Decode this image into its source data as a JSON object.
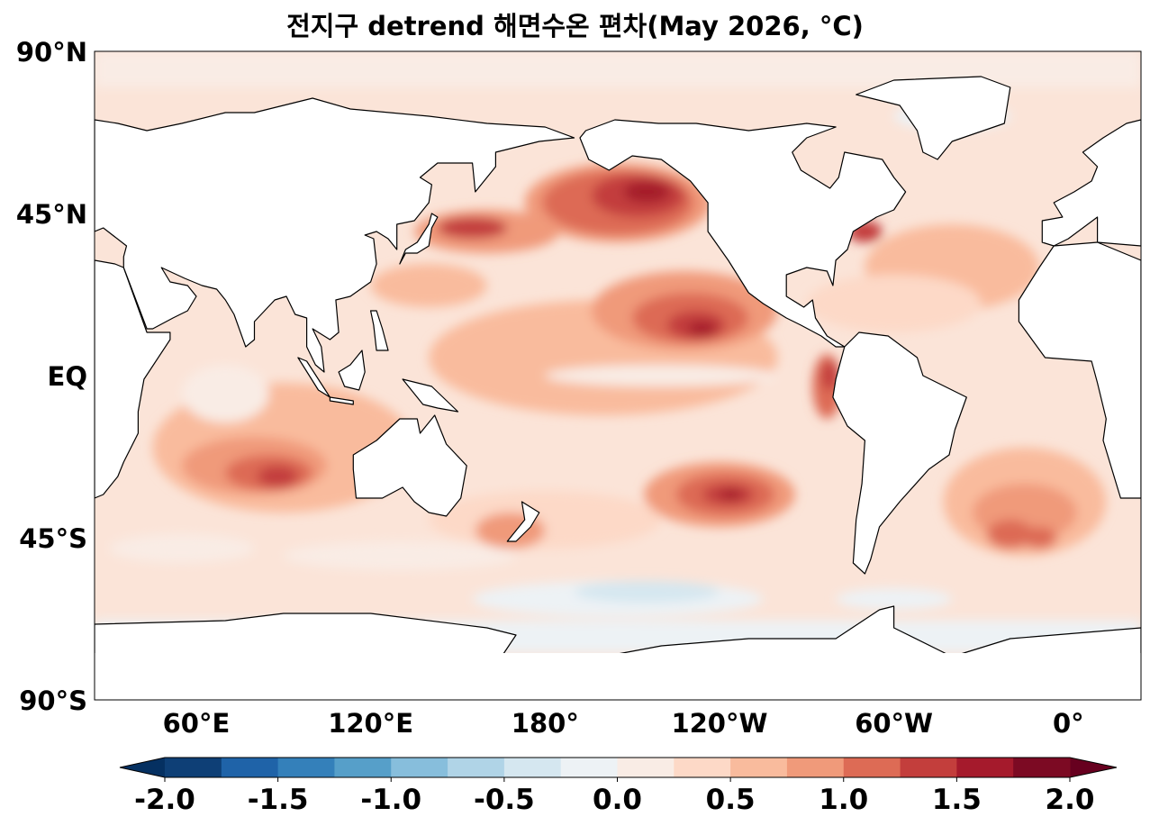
{
  "title": "전지구 detrend 해면수온 편차(May 2026, °C)",
  "map": {
    "projection": "equirectangular",
    "lon_range": [
      25,
      385
    ],
    "lat_range": [
      -90,
      90
    ],
    "variable": "detrended sea surface temperature anomaly",
    "lat_ticks": [
      {
        "value": 90,
        "label": "90°N"
      },
      {
        "value": 45,
        "label": "45°N"
      },
      {
        "value": 0,
        "label": "EQ"
      },
      {
        "value": -45,
        "label": "45°S"
      },
      {
        "value": -90,
        "label": "90°S"
      }
    ],
    "lon_ticks": [
      {
        "value": 60,
        "label": "60°E"
      },
      {
        "value": 120,
        "label": "120°E"
      },
      {
        "value": 180,
        "label": "180°"
      },
      {
        "value": 240,
        "label": "120°W"
      },
      {
        "value": 300,
        "label": "60°W"
      },
      {
        "value": 360,
        "label": "0°"
      }
    ],
    "land_color": "#ffffff",
    "coastline_color": "#000000"
  },
  "colorbar": {
    "min": -2.0,
    "max": 2.0,
    "step": 0.25,
    "extend": "both",
    "tick_labels": [
      "-2.0",
      "-1.5",
      "-1.0",
      "-0.5",
      "0.0",
      "0.5",
      "1.0",
      "1.5",
      "2.0"
    ],
    "colors": [
      "#0e3f76",
      "#1f63a8",
      "#3480ba",
      "#569fc9",
      "#87bedc",
      "#b0d4e7",
      "#d5e7f0",
      "#edf2f5",
      "#f9ece5",
      "#fdd9c7",
      "#f9bb9d",
      "#f09a7a",
      "#dd6b55",
      "#c33e3c",
      "#a51a2c",
      "#7c0a23"
    ],
    "under_color": "#053061",
    "over_color": "#67001f"
  }
}
